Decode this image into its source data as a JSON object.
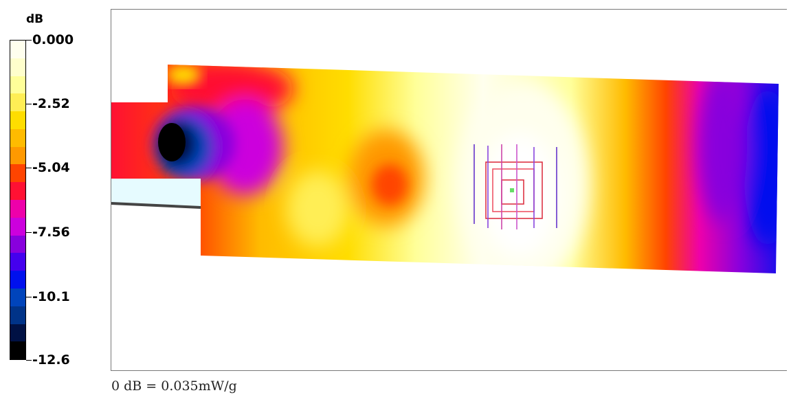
{
  "chart_data": {
    "type": "heatmap",
    "colorbar": {
      "unit": "dB",
      "range": [
        -12.6,
        0.0
      ],
      "ticks": [
        {
          "value": 0.0,
          "label": "0.000"
        },
        {
          "value": -2.52,
          "label": "-2.52"
        },
        {
          "value": -5.04,
          "label": "-5.04"
        },
        {
          "value": -7.56,
          "label": "-7.56"
        },
        {
          "value": -10.1,
          "label": "-10.1"
        },
        {
          "value": -12.6,
          "label": "-12.6"
        }
      ],
      "bands_top_to_bottom": [
        "#ffffee",
        "#ffffcc",
        "#ffff99",
        "#ffee55",
        "#ffdd00",
        "#ffbb00",
        "#ff9900",
        "#ff4400",
        "#ff1133",
        "#ee00aa",
        "#cc00dd",
        "#8800dd",
        "#4400ee",
        "#0011ee",
        "#0044bb",
        "#003388",
        "#001144",
        "#000000"
      ]
    },
    "reference": "0 dB = 0.035mW/g"
  }
}
